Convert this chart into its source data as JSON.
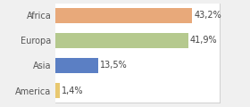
{
  "categories": [
    "America",
    "Asia",
    "Europa",
    "Africa"
  ],
  "values": [
    1.4,
    13.5,
    41.9,
    43.2
  ],
  "labels": [
    "1,4%",
    "13,5%",
    "41,9%",
    "43,2%"
  ],
  "bar_colors": [
    "#e8c870",
    "#5b7fc4",
    "#b5c98e",
    "#e8a97a"
  ],
  "background_color": "#f0f0f0",
  "plot_bg_color": "#ffffff",
  "xlim": [
    0,
    52
  ],
  "bar_height": 0.6,
  "label_fontsize": 7.0,
  "ytick_fontsize": 7.0,
  "spine_color": "#cccccc"
}
